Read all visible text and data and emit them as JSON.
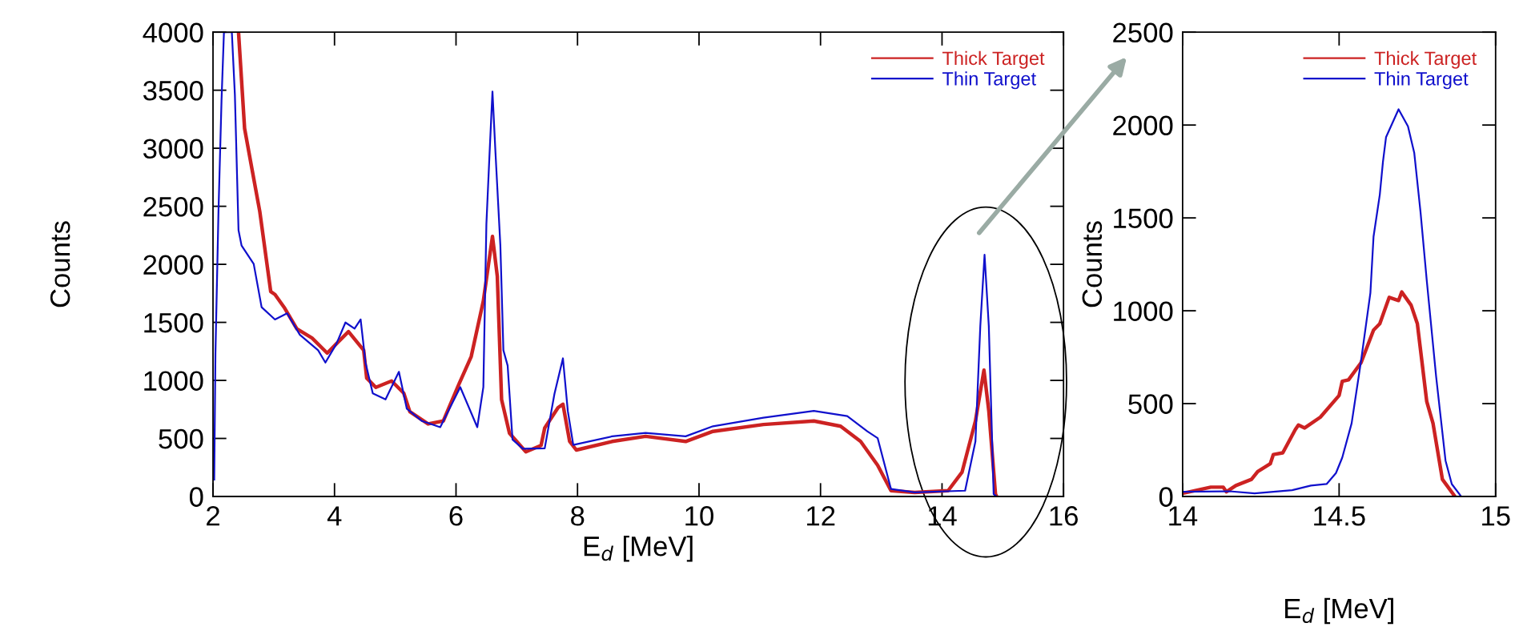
{
  "chart_data": [
    {
      "type": "line",
      "xlabel": "E$_{d}$ [MeV]",
      "ylabel": "Counts",
      "xlim": [
        2,
        16
      ],
      "ylim": [
        0,
        4000
      ],
      "xticks": [
        2,
        4,
        6,
        8,
        10,
        12,
        14,
        16
      ],
      "yticks": [
        0,
        500,
        1000,
        1500,
        2000,
        2500,
        3000,
        3500,
        4000
      ],
      "legend": "top right",
      "marker": "none",
      "series": [
        {
          "name": "Thick Target",
          "color": "#cc2222",
          "x": [
            2.42,
            2.52,
            2.64,
            2.77,
            2.95,
            3.02,
            3.17,
            3.38,
            3.63,
            3.88,
            4.03,
            4.23,
            4.48,
            4.53,
            4.68,
            4.94,
            5.14,
            5.24,
            5.54,
            5.79,
            6.05,
            6.25,
            6.45,
            6.6,
            6.68,
            6.75,
            6.88,
            7.15,
            7.4,
            7.46,
            7.68,
            7.76,
            7.87,
            7.98,
            8.57,
            9.12,
            9.78,
            10.23,
            11.06,
            11.89,
            12.33,
            12.66,
            12.94,
            13.16,
            13.55,
            14.1,
            14.33,
            14.55,
            14.69,
            14.77,
            14.88,
            14.9
          ],
          "values": [
            4000,
            3170,
            2825,
            2455,
            1765,
            1740,
            1630,
            1445,
            1365,
            1235,
            1315,
            1420,
            1260,
            1020,
            940,
            995,
            890,
            730,
            625,
            650,
            970,
            1205,
            1685,
            2240,
            1895,
            835,
            545,
            385,
            440,
            590,
            766,
            795,
            475,
            400,
            474,
            518,
            474,
            561,
            620,
            650,
            605,
            474,
            269,
            50,
            35,
            50,
            210,
            650,
            1088,
            737,
            20,
            0
          ]
        },
        {
          "name": "Thin Target",
          "color": "#1010cc",
          "x": [
            2.02,
            2.04,
            2.09,
            2.14,
            2.18,
            2.31,
            2.36,
            2.42,
            2.47,
            2.67,
            2.8,
            3.02,
            3.22,
            3.43,
            3.73,
            3.85,
            4.03,
            4.18,
            4.33,
            4.43,
            4.51,
            4.63,
            4.84,
            5.06,
            5.19,
            5.44,
            5.74,
            6.07,
            6.35,
            6.45,
            6.5,
            6.55,
            6.6,
            6.65,
            6.73,
            6.78,
            6.85,
            6.93,
            7.1,
            7.46,
            7.62,
            7.76,
            7.84,
            7.93,
            8.57,
            9.12,
            9.78,
            10.23,
            11.06,
            11.89,
            12.44,
            12.77,
            12.94,
            13.16,
            13.55,
            14.38,
            14.55,
            14.63,
            14.7,
            14.77,
            14.85,
            14.9
          ],
          "values": [
            146,
            1233,
            2455,
            3408,
            4000,
            4000,
            3461,
            2294,
            2162,
            2003,
            1631,
            1525,
            1578,
            1393,
            1260,
            1154,
            1313,
            1499,
            1446,
            1525,
            1154,
            889,
            836,
            1074,
            756,
            650,
            597,
            942,
            597,
            942,
            2347,
            2931,
            3488,
            2958,
            2162,
            1260,
            1127,
            491,
            411,
            415,
            883,
            1190,
            737,
            444,
            518,
            547,
            518,
            605,
            678,
            737,
            693,
            561,
            503,
            64,
            35,
            50,
            474,
            1468,
            2082,
            1468,
            20,
            0
          ]
        }
      ]
    },
    {
      "type": "line",
      "xlabel": "E$_{d}$ [MeV]",
      "ylabel": "Counts",
      "xlim": [
        14,
        15
      ],
      "ylim": [
        0,
        2500
      ],
      "xticks": [
        14,
        14.5,
        15
      ],
      "yticks": [
        0,
        500,
        1000,
        1500,
        2000,
        2500
      ],
      "legend": "top right",
      "marker": "none",
      "series": [
        {
          "name": "Thick Target",
          "color": "#cc2222",
          "x": [
            14.0,
            14.09,
            14.13,
            14.14,
            14.17,
            14.22,
            14.24,
            14.28,
            14.29,
            14.32,
            14.36,
            14.37,
            14.39,
            14.44,
            14.5,
            14.51,
            14.53,
            14.57,
            14.61,
            14.63,
            14.66,
            14.69,
            14.7,
            14.73,
            14.75,
            14.78,
            14.8,
            14.83,
            14.87
          ],
          "values": [
            17,
            50,
            50,
            25,
            59,
            92,
            134,
            176,
            226,
            235,
            360,
            385,
            369,
            427,
            544,
            620,
            628,
            720,
            896,
            930,
            1072,
            1055,
            1101,
            1030,
            930,
            511,
            394,
            92,
            0
          ]
        },
        {
          "name": "Thin Target",
          "color": "#1010cc",
          "x": [
            14.0,
            14.15,
            14.23,
            14.35,
            14.41,
            14.46,
            14.49,
            14.51,
            14.54,
            14.57,
            14.6,
            14.61,
            14.63,
            14.64,
            14.65,
            14.69,
            14.72,
            14.74,
            14.76,
            14.78,
            14.81,
            14.84,
            14.86,
            14.89
          ],
          "values": [
            25,
            28,
            17,
            34,
            59,
            67,
            126,
            209,
            394,
            729,
            1097,
            1399,
            1625,
            1801,
            1935,
            2085,
            1993,
            1851,
            1533,
            1164,
            645,
            193,
            67,
            0
          ]
        }
      ]
    }
  ]
}
